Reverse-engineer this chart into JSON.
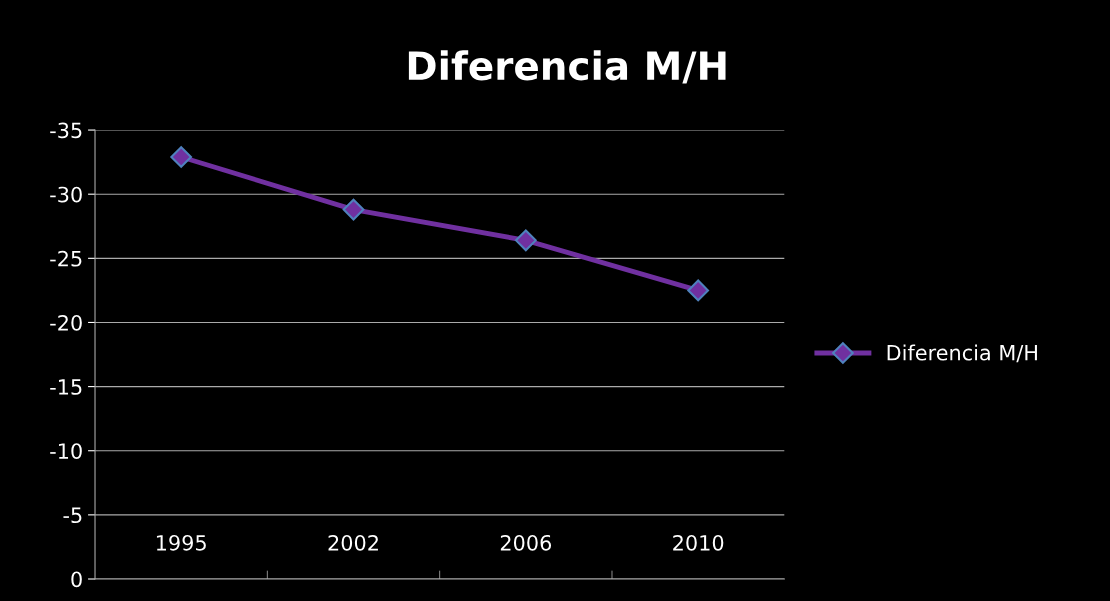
{
  "chart_data": {
    "type": "line",
    "title": "Diferencia M/H",
    "categories": [
      "1995",
      "2002",
      "2006",
      "2010"
    ],
    "series": [
      {
        "name": "Diferencia M/H",
        "color": "#7030a0",
        "values": [
          -32.9,
          -28.8,
          -26.4,
          -22.5
        ]
      }
    ],
    "ylim": [
      0,
      -35
    ],
    "yticks": [
      0,
      -5,
      -10,
      -15,
      -20,
      -25,
      -30,
      -35
    ],
    "grid": "y",
    "legend": "right",
    "marker": "diamond",
    "line_style": "solid"
  }
}
